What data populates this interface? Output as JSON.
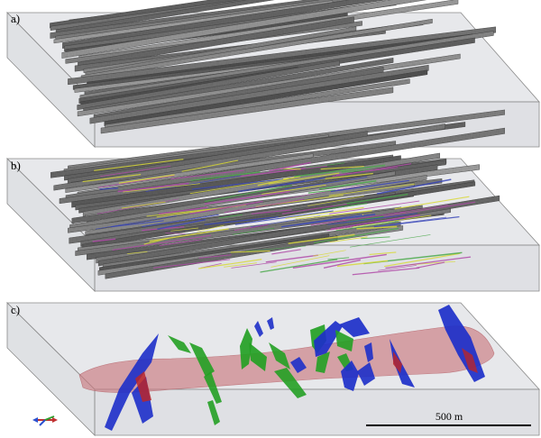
{
  "panels": [
    {
      "label": "a)",
      "content": "drill-core-imagery-grayscale"
    },
    {
      "label": "b)",
      "content": "drill-core-imagery-with-fracture-traces"
    },
    {
      "label": "c)",
      "content": "modelled-fault-planes-and-zone"
    }
  ],
  "scale_bar": {
    "label": "500 m"
  },
  "colors": {
    "box_face": "#c9ccd2",
    "box_edge": "#7a7a7a",
    "core_gray": "#6e6e6e",
    "trace_yellow": "#d8d83a",
    "trace_magenta": "#b04aa8",
    "trace_blue": "#3a46b8",
    "trace_green": "#4aa84a",
    "zone_pink": "#c97a80",
    "fault_blue": "#1d2fc9",
    "fault_green": "#24a024",
    "fault_red": "#b8262a"
  },
  "icons": {
    "orientation": "axis-triad-icon"
  }
}
